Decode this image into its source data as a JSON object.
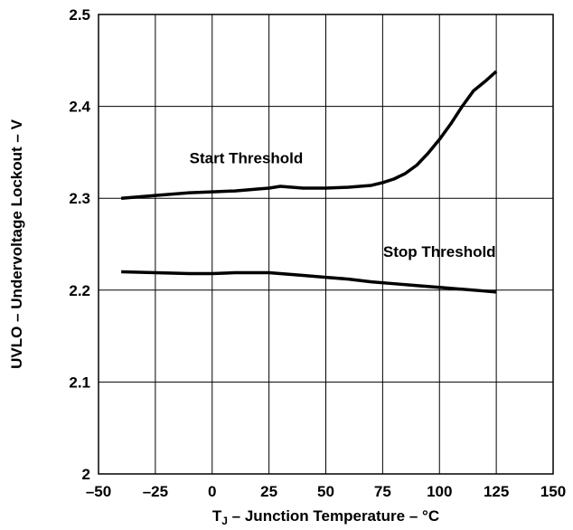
{
  "chart_data": {
    "type": "line",
    "xlabel_parts": {
      "prefix": "T",
      "subscript": "J",
      "suffix": " – Junction Temperature – °C"
    },
    "ylabel": "UVLO – Undervoltage Lockout – V",
    "xlim": [
      -50,
      150
    ],
    "ylim": [
      2.0,
      2.5
    ],
    "x_ticks": [
      -50,
      -25,
      0,
      25,
      50,
      75,
      100,
      125,
      150
    ],
    "x_tick_labels": [
      "–50",
      "–25",
      "0",
      "25",
      "50",
      "75",
      "100",
      "125",
      "150"
    ],
    "y_ticks": [
      2.0,
      2.1,
      2.2,
      2.3,
      2.4,
      2.5
    ],
    "y_tick_labels": [
      "2",
      "2.1",
      "2.2",
      "2.3",
      "2.4",
      "2.5"
    ],
    "grid": true,
    "series": [
      {
        "name": "Start Threshold",
        "x": [
          -40,
          -25,
          -10,
          0,
          10,
          20,
          25,
          30,
          35,
          40,
          45,
          50,
          60,
          70,
          75,
          80,
          85,
          90,
          95,
          100,
          105,
          110,
          115,
          120,
          125
        ],
        "y": [
          2.3,
          2.303,
          2.306,
          2.307,
          2.308,
          2.31,
          2.311,
          2.313,
          2.312,
          2.311,
          2.311,
          2.311,
          2.312,
          2.314,
          2.317,
          2.321,
          2.327,
          2.336,
          2.349,
          2.364,
          2.381,
          2.4,
          2.417,
          2.427,
          2.438
        ],
        "label_x": 15,
        "label_y": 2.338
      },
      {
        "name": "Stop Threshold",
        "x": [
          -40,
          -25,
          -10,
          0,
          10,
          20,
          25,
          30,
          40,
          50,
          60,
          70,
          80,
          90,
          100,
          110,
          120,
          125
        ],
        "y": [
          2.22,
          2.219,
          2.218,
          2.218,
          2.219,
          2.219,
          2.219,
          2.218,
          2.216,
          2.214,
          2.212,
          2.209,
          2.207,
          2.205,
          2.203,
          2.201,
          2.199,
          2.198
        ],
        "label_x": 100,
        "label_y": 2.236
      }
    ]
  }
}
